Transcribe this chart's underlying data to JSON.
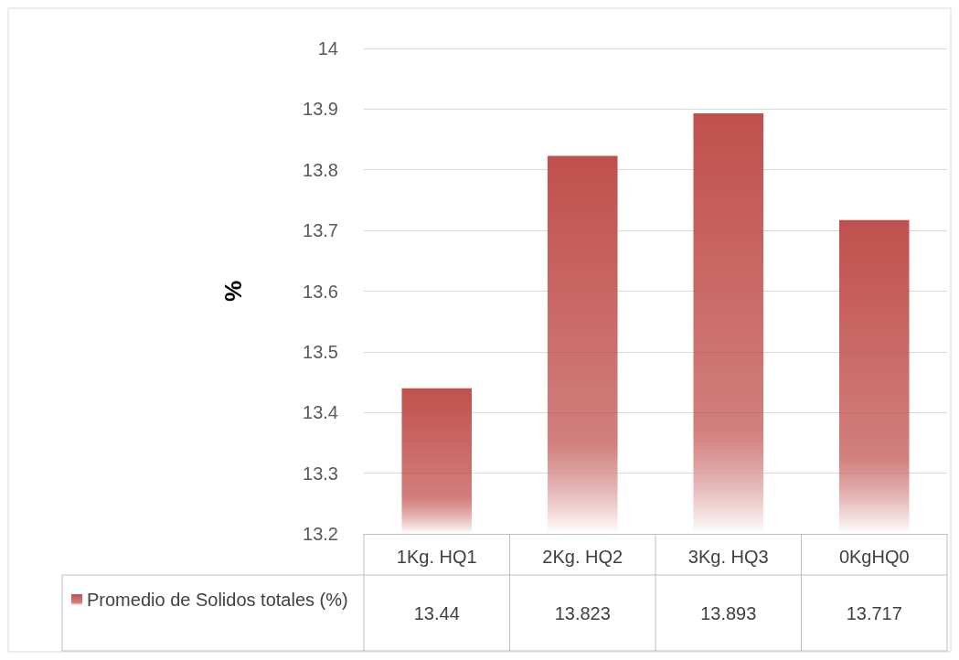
{
  "chart_data": {
    "type": "bar",
    "ylabel": "%",
    "categories": [
      "1Kg. HQ1",
      "2Kg. HQ2",
      "3Kg. HQ3",
      "0KgHQ0"
    ],
    "series": [
      {
        "name": "Promedio de Solidos totales (%)",
        "color": "#c0504d",
        "values": [
          13.44,
          13.823,
          13.893,
          13.717
        ]
      }
    ],
    "ylim": [
      13.2,
      14
    ],
    "yticks": [
      13.2,
      13.3,
      13.4,
      13.5,
      13.6,
      13.7,
      13.8,
      13.9,
      14
    ],
    "grid": "y",
    "legend": "bottom left",
    "data_labels": true
  }
}
